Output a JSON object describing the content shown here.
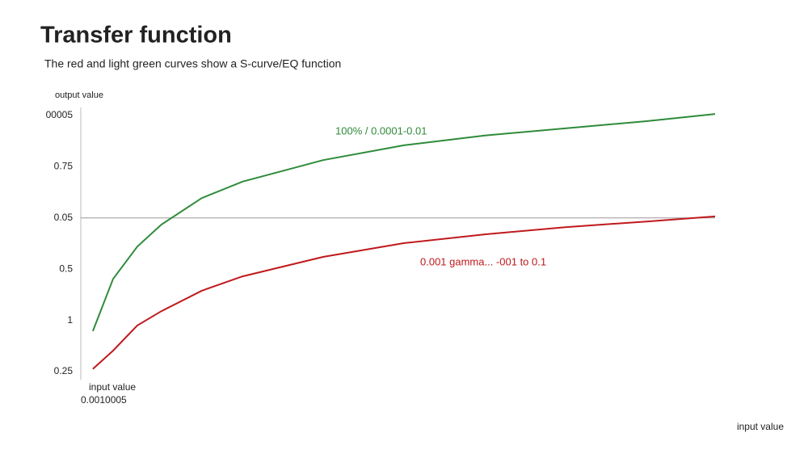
{
  "chart_data": {
    "type": "line",
    "title": "Transfer function",
    "subtitle": "The red and light green curves show a S-curve/EQ function",
    "y_label": "output value",
    "x_label": "input value",
    "x_axis_note": "input value",
    "x_origin_label": "0.0010005",
    "x": [
      0.019,
      0.051,
      0.089,
      0.127,
      0.191,
      0.255,
      0.382,
      0.51,
      0.637,
      0.764,
      0.892,
      1
    ],
    "xlim": [
      0,
      1
    ],
    "ylim": [
      0,
      5
    ],
    "yticks": [
      {
        "value": 0,
        "label": "0.25"
      },
      {
        "value": 1,
        "label": "1"
      },
      {
        "value": 2,
        "label": "0.5"
      },
      {
        "value": 3,
        "label": "0.05"
      },
      {
        "value": 4,
        "label": "0.75"
      },
      {
        "value": 5,
        "label": "00005"
      }
    ],
    "reference_line": 3,
    "series": [
      {
        "name": "100% / 0.0001-0.01",
        "color": "#2e8b3a",
        "values": [
          0.79,
          1.81,
          2.44,
          2.87,
          3.39,
          3.71,
          4.13,
          4.42,
          4.61,
          4.75,
          4.89,
          5.03
        ]
      },
      {
        "name": "0.001 gamma... -001 to 0.1",
        "color": "#c0191c",
        "values": [
          0.05,
          0.41,
          0.9,
          1.18,
          1.58,
          1.86,
          2.24,
          2.51,
          2.68,
          2.82,
          2.93,
          3.03
        ]
      }
    ]
  }
}
